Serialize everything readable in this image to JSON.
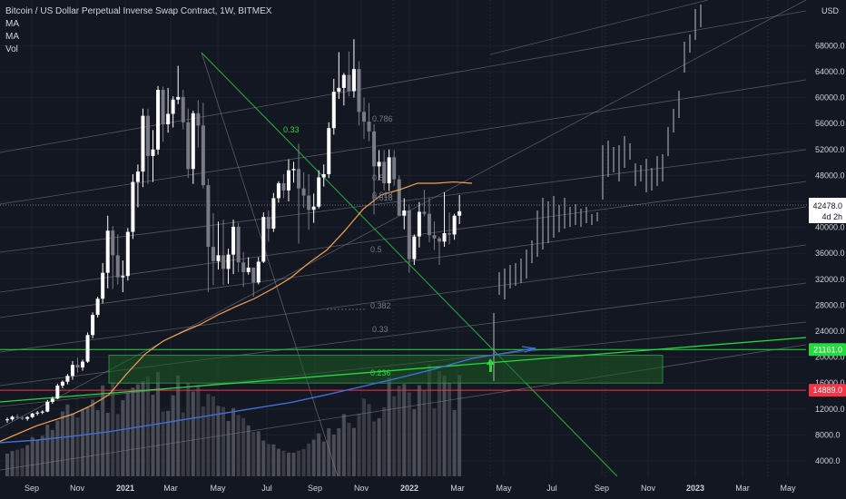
{
  "header": {
    "symbol_title": "Bitcoin / US Dollar Perpetual Inverse Swap Contract, 1W, BITMEX",
    "indicators": [
      "MA",
      "MA",
      "Vol"
    ]
  },
  "axis": {
    "currency": "USD",
    "y_ticks": [
      4000,
      8000,
      12000,
      16000,
      20000,
      24000,
      28000,
      32000,
      36000,
      40000,
      44000,
      48000,
      52000,
      56000,
      60000,
      64000,
      68000
    ],
    "y_tick_labels": [
      "4000.0",
      "8000.0",
      "12000.0",
      "16000.0",
      "20000.0",
      "24000.0",
      "28000.0",
      "32000.0",
      "36000.0",
      "40000.0",
      "44000.0",
      "48000.0",
      "52000.0",
      "56000.0",
      "60000.0",
      "64000.0",
      "68000.0"
    ],
    "x_ticks": [
      {
        "label": "Sep",
        "x": 35,
        "year": false
      },
      {
        "label": "Nov",
        "x": 85,
        "year": false
      },
      {
        "label": "2021",
        "x": 138,
        "year": true
      },
      {
        "label": "Mar",
        "x": 188,
        "year": false
      },
      {
        "label": "May",
        "x": 240,
        "year": false
      },
      {
        "label": "Jul",
        "x": 294,
        "year": false
      },
      {
        "label": "Sep",
        "x": 347,
        "year": false
      },
      {
        "label": "Nov",
        "x": 398,
        "year": false
      },
      {
        "label": "2022",
        "x": 451,
        "year": true
      },
      {
        "label": "Mar",
        "x": 504,
        "year": false
      },
      {
        "label": "May",
        "x": 555,
        "year": false
      },
      {
        "label": "Jul",
        "x": 608,
        "year": false
      },
      {
        "label": "Sep",
        "x": 663,
        "year": false
      },
      {
        "label": "Nov",
        "x": 714,
        "year": false
      },
      {
        "label": "2023",
        "x": 766,
        "year": true
      },
      {
        "label": "Mar",
        "x": 818,
        "year": false
      },
      {
        "label": "May",
        "x": 868,
        "year": false
      }
    ]
  },
  "price_tags": {
    "last_price": "42478.0",
    "countdown": "4d 2h",
    "level_upper": "21161.0",
    "level_lower": "14889.0"
  },
  "fib_labels": [
    "0.33",
    "0.5",
    "0.618",
    "0.382",
    "0.33",
    "0.236",
    "0.5",
    "0.618",
    "0.786"
  ],
  "colors": {
    "background": "#131722",
    "bull_candle": "#ffffff",
    "bear_candle": "#787b86",
    "ma_fast": "#f7a350",
    "ma_slow": "#3f6fd8",
    "support_green": "#26d93e",
    "resistance_red": "#f23645",
    "zone_fill": "#1e5b22",
    "fan_line": "#8a8d96",
    "projection": "#9598a1"
  },
  "chart_data": {
    "type": "candlestick",
    "title": "Bitcoin / US Dollar Perpetual Inverse Swap Contract, 1W, BITMEX",
    "ylabel": "USD",
    "ylim": [
      3000,
      72000
    ],
    "last_price": 42478,
    "horizontal_levels": [
      21161,
      14889
    ],
    "zone": [
      16000,
      20300
    ],
    "candles": [
      [
        10300,
        10700,
        9900,
        10400
      ],
      [
        10400,
        11000,
        10200,
        10800
      ],
      [
        10800,
        11200,
        10500,
        10650
      ],
      [
        10650,
        10900,
        10300,
        10500
      ],
      [
        10500,
        10900,
        10200,
        10750
      ],
      [
        10750,
        11400,
        10600,
        11300
      ],
      [
        11300,
        11700,
        11000,
        11450
      ],
      [
        11450,
        11800,
        11200,
        11600
      ],
      [
        11600,
        13400,
        11500,
        13100
      ],
      [
        13100,
        13900,
        12800,
        13600
      ],
      [
        13600,
        15900,
        13500,
        15600
      ],
      [
        15600,
        16400,
        15200,
        16200
      ],
      [
        16200,
        17400,
        15800,
        17100
      ],
      [
        17100,
        19400,
        16500,
        18800
      ],
      [
        18800,
        19900,
        17600,
        18400
      ],
      [
        18400,
        19600,
        17900,
        19300
      ],
      [
        19300,
        23800,
        19100,
        23400
      ],
      [
        23400,
        26900,
        22900,
        26500
      ],
      [
        26500,
        29300,
        26100,
        29000
      ],
      [
        29000,
        34500,
        28300,
        33000
      ],
      [
        33000,
        41800,
        30600,
        39500
      ],
      [
        39500,
        40200,
        30500,
        35700
      ],
      [
        35700,
        38900,
        31200,
        32300
      ],
      [
        32300,
        34900,
        30000,
        32500
      ],
      [
        32500,
        39900,
        31800,
        39300
      ],
      [
        39300,
        48200,
        38200,
        47000
      ],
      [
        47000,
        49700,
        43100,
        48600
      ],
      [
        48600,
        58300,
        46200,
        57200
      ],
      [
        57200,
        58300,
        46700,
        51000
      ],
      [
        51000,
        55000,
        47000,
        52000
      ],
      [
        52000,
        61800,
        51200,
        61200
      ],
      [
        61200,
        61700,
        53200,
        55900
      ],
      [
        55900,
        61500,
        54600,
        57500
      ],
      [
        57500,
        60200,
        55400,
        59700
      ],
      [
        59700,
        64900,
        59000,
        60100
      ],
      [
        60100,
        61200,
        55100,
        56200
      ],
      [
        56200,
        58300,
        47600,
        49000
      ],
      [
        49000,
        58000,
        46700,
        57600
      ],
      [
        57600,
        59600,
        52300,
        55700
      ],
      [
        55700,
        59200,
        46000,
        46500
      ],
      [
        46500,
        47500,
        30000,
        37000
      ],
      [
        37000,
        42200,
        31100,
        34800
      ],
      [
        34800,
        40900,
        33500,
        35700
      ],
      [
        35700,
        41200,
        31100,
        33600
      ],
      [
        33600,
        36700,
        31300,
        35800
      ],
      [
        35800,
        41200,
        32800,
        40100
      ],
      [
        40100,
        40700,
        33100,
        34600
      ],
      [
        34600,
        36200,
        30800,
        33100
      ],
      [
        33100,
        35400,
        32700,
        33800
      ],
      [
        33800,
        33800,
        29300,
        31500
      ],
      [
        31500,
        35400,
        31200,
        34700
      ],
      [
        34700,
        42300,
        34500,
        41600
      ],
      [
        41600,
        42600,
        37800,
        39800
      ],
      [
        39800,
        45300,
        39300,
        44500
      ],
      [
        44500,
        47100,
        43800,
        46800
      ],
      [
        46800,
        48200,
        44500,
        45700
      ],
      [
        45700,
        50500,
        44000,
        48800
      ],
      [
        48800,
        50100,
        46900,
        49000
      ],
      [
        49000,
        52900,
        37500,
        46000
      ],
      [
        46000,
        48500,
        43000,
        44900
      ],
      [
        44900,
        48200,
        39600,
        42700
      ],
      [
        42700,
        45200,
        40700,
        43200
      ],
      [
        43200,
        48800,
        42900,
        47700
      ],
      [
        47700,
        49700,
        46300,
        48200
      ],
      [
        48200,
        56200,
        47600,
        55300
      ],
      [
        55300,
        62900,
        54300,
        60900
      ],
      [
        60900,
        67000,
        59800,
        61500
      ],
      [
        61500,
        63800,
        58800,
        63500
      ],
      [
        63500,
        67100,
        60200,
        61000
      ],
      [
        61000,
        69000,
        60000,
        64400
      ],
      [
        64400,
        65600,
        55700,
        57800
      ],
      [
        57800,
        60000,
        53600,
        56300
      ],
      [
        56300,
        59200,
        53300,
        54800
      ],
      [
        54800,
        55900,
        42000,
        49400
      ],
      [
        49400,
        51900,
        47300,
        50100
      ],
      [
        50100,
        51900,
        45700,
        46800
      ],
      [
        46800,
        52000,
        45600,
        50800
      ],
      [
        50800,
        51900,
        46400,
        47400
      ],
      [
        47400,
        48000,
        42000,
        41800
      ],
      [
        41800,
        44500,
        39700,
        42600
      ],
      [
        42600,
        43500,
        33000,
        35100
      ],
      [
        35100,
        38900,
        34200,
        38600
      ],
      [
        38600,
        43900,
        36900,
        42400
      ],
      [
        42400,
        45800,
        41700,
        42100
      ],
      [
        42100,
        44500,
        37700,
        38800
      ],
      [
        38800,
        40900,
        36500,
        38300
      ],
      [
        38300,
        38600,
        34200,
        37800
      ],
      [
        37800,
        45400,
        37000,
        39100
      ],
      [
        39100,
        42300,
        37400,
        38900
      ],
      [
        38900,
        42100,
        38100,
        41800
      ],
      [
        41800,
        45000,
        40500,
        42478
      ]
    ],
    "ma_fast": [
      [
        0,
        7000
      ],
      [
        20,
        8200
      ],
      [
        40,
        9400
      ],
      [
        60,
        10300
      ],
      [
        80,
        11200
      ],
      [
        100,
        12500
      ],
      [
        120,
        14200
      ],
      [
        140,
        17500
      ],
      [
        160,
        20500
      ],
      [
        180,
        22500
      ],
      [
        200,
        23800
      ],
      [
        220,
        25000
      ],
      [
        240,
        26500
      ],
      [
        260,
        27800
      ],
      [
        280,
        29000
      ],
      [
        300,
        30500
      ],
      [
        320,
        32200
      ],
      [
        340,
        34500
      ],
      [
        360,
        36500
      ],
      [
        380,
        39500
      ],
      [
        400,
        42800
      ],
      [
        420,
        45000
      ],
      [
        440,
        45800
      ],
      [
        460,
        46800
      ],
      [
        480,
        46800
      ],
      [
        500,
        47000
      ],
      [
        520,
        46800
      ]
    ],
    "ma_slow": [
      [
        0,
        6800
      ],
      [
        40,
        7200
      ],
      [
        80,
        7800
      ],
      [
        120,
        8500
      ],
      [
        160,
        9400
      ],
      [
        200,
        10300
      ],
      [
        240,
        11200
      ],
      [
        280,
        12100
      ],
      [
        320,
        13000
      ],
      [
        360,
        14200
      ],
      [
        400,
        15500
      ],
      [
        440,
        16800
      ],
      [
        480,
        18200
      ],
      [
        520,
        19800
      ],
      [
        560,
        20700
      ],
      [
        590,
        21400
      ]
    ],
    "projection_bars": [
      [
        544,
        345,
        420
      ],
      [
        550,
        300,
        325
      ],
      [
        556,
        296,
        330
      ],
      [
        562,
        292,
        318
      ],
      [
        568,
        290,
        315
      ],
      [
        574,
        285,
        312
      ],
      [
        580,
        275,
        307
      ],
      [
        586,
        265,
        290
      ],
      [
        592,
        232,
        283
      ],
      [
        598,
        218,
        275
      ],
      [
        604,
        222,
        268
      ],
      [
        610,
        216,
        262
      ],
      [
        616,
        226,
        256
      ],
      [
        622,
        218,
        252
      ],
      [
        628,
        228,
        250
      ],
      [
        634,
        225,
        248
      ],
      [
        640,
        230,
        250
      ],
      [
        646,
        228,
        246
      ],
      [
        652,
        236,
        248
      ],
      [
        658,
        234,
        244
      ],
      [
        664,
        160,
        220
      ],
      [
        670,
        155,
        195
      ],
      [
        676,
        162,
        190
      ],
      [
        682,
        160,
        200
      ],
      [
        688,
        150,
        185
      ],
      [
        694,
        158,
        176
      ],
      [
        700,
        180,
        205
      ],
      [
        706,
        182,
        200
      ],
      [
        712,
        175,
        212
      ],
      [
        718,
        185,
        210
      ],
      [
        724,
        172,
        205
      ],
      [
        730,
        170,
        200
      ],
      [
        736,
        140,
        172
      ],
      [
        742,
        120,
        146
      ],
      [
        748,
        100,
        130
      ],
      [
        754,
        46,
        80
      ],
      [
        760,
        38,
        58
      ],
      [
        766,
        10,
        44
      ],
      [
        772,
        5,
        30
      ]
    ]
  }
}
